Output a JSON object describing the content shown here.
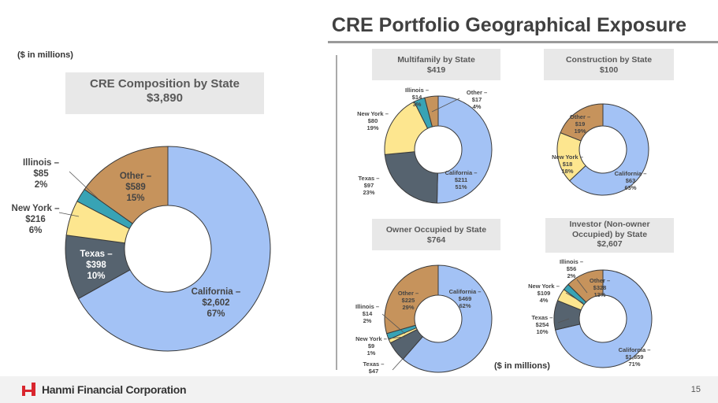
{
  "header": {
    "title": "CRE Portfolio Geographical Exposure",
    "units_top": "($ in millions)",
    "units_bottom": "($ in millions)"
  },
  "colors": {
    "California": "#a3c2f5",
    "Texas": "#56636f",
    "New York": "#fde68f",
    "Illinois": "#38a3b5",
    "Other": "#c6935c"
  },
  "chart_data": [
    {
      "type": "pie",
      "title": "CRE Composition by State",
      "total": "$3,890",
      "slices": [
        {
          "name": "California",
          "value": 2602,
          "value_label": "$2,602",
          "pct": "67%"
        },
        {
          "name": "Texas",
          "value": 398,
          "value_label": "$398",
          "pct": "10%"
        },
        {
          "name": "New York",
          "value": 216,
          "value_label": "$216",
          "pct": "6%"
        },
        {
          "name": "Illinois",
          "value": 85,
          "value_label": "$85",
          "pct": "2%"
        },
        {
          "name": "Other",
          "value": 589,
          "value_label": "$589",
          "pct": "15%"
        }
      ]
    },
    {
      "type": "pie",
      "title": "Multifamily by State",
      "total": "$419",
      "slices": [
        {
          "name": "California",
          "value": 211,
          "value_label": "$211",
          "pct": "51%"
        },
        {
          "name": "Texas",
          "value": 97,
          "value_label": "$97",
          "pct": "23%"
        },
        {
          "name": "New York",
          "value": 80,
          "value_label": "$80",
          "pct": "19%"
        },
        {
          "name": "Illinois",
          "value": 14,
          "value_label": "$14",
          "pct": "3%"
        },
        {
          "name": "Other",
          "value": 17,
          "value_label": "$17",
          "pct": "4%"
        }
      ]
    },
    {
      "type": "pie",
      "title": "Construction by State",
      "total": "$100",
      "slices": [
        {
          "name": "California",
          "value": 63,
          "value_label": "$63",
          "pct": "63%"
        },
        {
          "name": "New York",
          "value": 18,
          "value_label": "$18",
          "pct": "18%"
        },
        {
          "name": "Other",
          "value": 19,
          "value_label": "$19",
          "pct": "19%"
        }
      ]
    },
    {
      "type": "pie",
      "title": "Owner Occupied by State",
      "total": "$764",
      "slices": [
        {
          "name": "California",
          "value": 469,
          "value_label": "$469",
          "pct": "62%"
        },
        {
          "name": "Texas",
          "value": 47,
          "value_label": "$47",
          "pct": "6%"
        },
        {
          "name": "New York",
          "value": 9,
          "value_label": "$9",
          "pct": "1%"
        },
        {
          "name": "Illinois",
          "value": 14,
          "value_label": "$14",
          "pct": "2%"
        },
        {
          "name": "Other",
          "value": 225,
          "value_label": "$225",
          "pct": "29%"
        }
      ]
    },
    {
      "type": "pie",
      "title": "Investor (Non-owner Occupied) by State",
      "total": "$2,607",
      "slices": [
        {
          "name": "California",
          "value": 1859,
          "value_label": "$1,859",
          "pct": "71%"
        },
        {
          "name": "Texas",
          "value": 254,
          "value_label": "$254",
          "pct": "10%"
        },
        {
          "name": "New York",
          "value": 109,
          "value_label": "$109",
          "pct": "4%"
        },
        {
          "name": "Illinois",
          "value": 56,
          "value_label": "$56",
          "pct": "2%"
        },
        {
          "name": "Other",
          "value": 328,
          "value_label": "$328",
          "pct": "13%"
        }
      ]
    }
  ],
  "footer": {
    "company": "Hanmi Financial Corporation",
    "page": "15"
  }
}
